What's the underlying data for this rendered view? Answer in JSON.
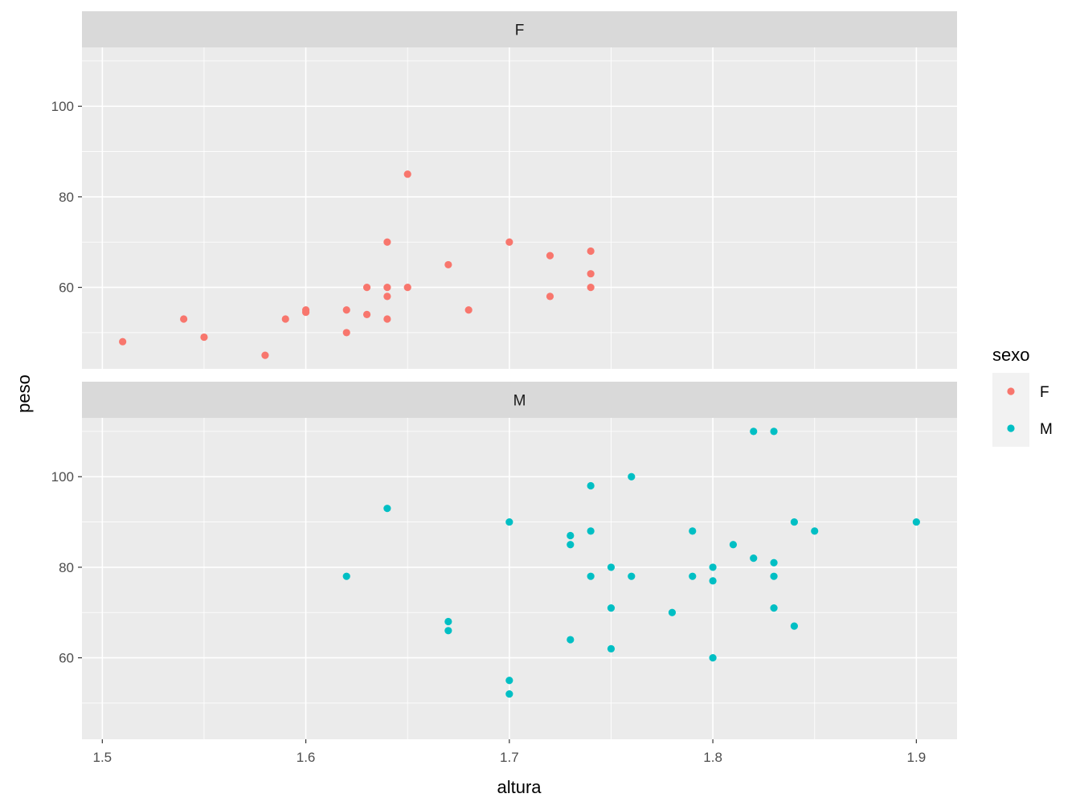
{
  "chart_data": {
    "type": "scatter",
    "xlabel": "altura",
    "ylabel": "peso",
    "xlim": [
      1.49,
      1.92
    ],
    "ylim": [
      42,
      113
    ],
    "x_ticks": [
      1.5,
      1.6,
      1.7,
      1.8,
      1.9
    ],
    "x_tick_labels": [
      "1.5",
      "1.6",
      "1.7",
      "1.8",
      "1.9"
    ],
    "y_ticks": [
      60,
      80,
      100
    ],
    "y_tick_labels": [
      "60",
      "80",
      "100"
    ],
    "grid": true,
    "legend": {
      "title": "sexo",
      "position": "right",
      "entries": [
        {
          "label": "F",
          "color": "#F8766D"
        },
        {
          "label": "M",
          "color": "#00BFC4"
        }
      ]
    },
    "facets": [
      {
        "label": "F",
        "color": "#F8766D",
        "points": [
          {
            "x": 1.51,
            "y": 48
          },
          {
            "x": 1.54,
            "y": 53
          },
          {
            "x": 1.55,
            "y": 49
          },
          {
            "x": 1.58,
            "y": 45
          },
          {
            "x": 1.59,
            "y": 53
          },
          {
            "x": 1.6,
            "y": 54.5
          },
          {
            "x": 1.6,
            "y": 55
          },
          {
            "x": 1.62,
            "y": 55
          },
          {
            "x": 1.62,
            "y": 50
          },
          {
            "x": 1.63,
            "y": 60
          },
          {
            "x": 1.63,
            "y": 54
          },
          {
            "x": 1.64,
            "y": 70
          },
          {
            "x": 1.64,
            "y": 60
          },
          {
            "x": 1.64,
            "y": 58
          },
          {
            "x": 1.64,
            "y": 53
          },
          {
            "x": 1.65,
            "y": 85
          },
          {
            "x": 1.65,
            "y": 60
          },
          {
            "x": 1.67,
            "y": 65
          },
          {
            "x": 1.68,
            "y": 55
          },
          {
            "x": 1.7,
            "y": 70
          },
          {
            "x": 1.72,
            "y": 67
          },
          {
            "x": 1.72,
            "y": 58
          },
          {
            "x": 1.74,
            "y": 68
          },
          {
            "x": 1.74,
            "y": 63
          },
          {
            "x": 1.74,
            "y": 60
          }
        ]
      },
      {
        "label": "M",
        "color": "#00BFC4",
        "points": [
          {
            "x": 1.62,
            "y": 78
          },
          {
            "x": 1.64,
            "y": 93
          },
          {
            "x": 1.67,
            "y": 68
          },
          {
            "x": 1.67,
            "y": 66
          },
          {
            "x": 1.7,
            "y": 90
          },
          {
            "x": 1.7,
            "y": 55
          },
          {
            "x": 1.7,
            "y": 52
          },
          {
            "x": 1.73,
            "y": 87
          },
          {
            "x": 1.73,
            "y": 85
          },
          {
            "x": 1.73,
            "y": 64
          },
          {
            "x": 1.74,
            "y": 98
          },
          {
            "x": 1.74,
            "y": 88
          },
          {
            "x": 1.74,
            "y": 78
          },
          {
            "x": 1.75,
            "y": 80
          },
          {
            "x": 1.75,
            "y": 71
          },
          {
            "x": 1.75,
            "y": 62
          },
          {
            "x": 1.76,
            "y": 100
          },
          {
            "x": 1.76,
            "y": 78
          },
          {
            "x": 1.78,
            "y": 70
          },
          {
            "x": 1.79,
            "y": 88
          },
          {
            "x": 1.79,
            "y": 78
          },
          {
            "x": 1.8,
            "y": 80
          },
          {
            "x": 1.8,
            "y": 77
          },
          {
            "x": 1.8,
            "y": 60
          },
          {
            "x": 1.81,
            "y": 85
          },
          {
            "x": 1.82,
            "y": 110
          },
          {
            "x": 1.82,
            "y": 82
          },
          {
            "x": 1.83,
            "y": 110
          },
          {
            "x": 1.83,
            "y": 81
          },
          {
            "x": 1.83,
            "y": 78
          },
          {
            "x": 1.83,
            "y": 71
          },
          {
            "x": 1.84,
            "y": 90
          },
          {
            "x": 1.84,
            "y": 67
          },
          {
            "x": 1.85,
            "y": 88
          },
          {
            "x": 1.9,
            "y": 90
          }
        ]
      }
    ]
  }
}
